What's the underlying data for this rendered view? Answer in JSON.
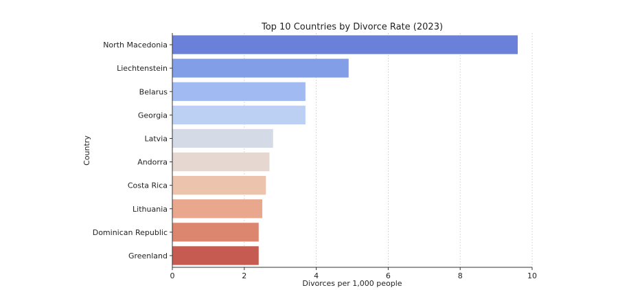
{
  "chart_data": {
    "type": "bar",
    "orientation": "horizontal",
    "title": "Top 10 Countries by Divorce Rate (2023)",
    "xlabel": "Divorces per 1,000 people",
    "ylabel": "Country",
    "xlim": [
      0,
      10
    ],
    "xticks": [
      0,
      2,
      4,
      6,
      8,
      10
    ],
    "grid": "vertical-dashed",
    "categories": [
      "North Macedonia",
      "Liechtenstein",
      "Belarus",
      "Georgia",
      "Latvia",
      "Andorra",
      "Costa Rica",
      "Lithuania",
      "Dominican Republic",
      "Greenland"
    ],
    "values": [
      9.6,
      4.9,
      3.7,
      3.7,
      2.8,
      2.7,
      2.6,
      2.5,
      2.4,
      2.4
    ],
    "colors": [
      "#6a80d9",
      "#829ee6",
      "#a1baf2",
      "#bcd0f3",
      "#d5dbe6",
      "#e6d8d0",
      "#ecc4ad",
      "#e9a78d",
      "#dc866f",
      "#c65c51"
    ]
  }
}
